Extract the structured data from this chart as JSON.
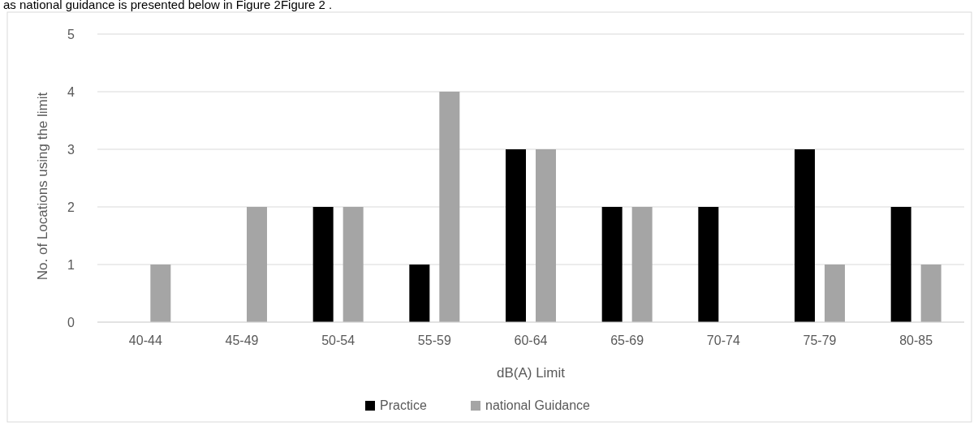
{
  "chart_data": {
    "type": "bar",
    "xlabel": "dB(A) Limit",
    "ylabel": "No. of Locations using the limit",
    "annotations": [
      "as national guidance is presented below in Figure 2Figure 2 ."
    ],
    "categories": [
      "40-44",
      "45-49",
      "50-54",
      "55-59",
      "60-64",
      "65-69",
      "70-74",
      "75-79",
      "80-85"
    ],
    "series": [
      {
        "name": "Practice",
        "color": "#000000",
        "values": [
          0,
          0,
          2,
          1,
          3,
          2,
          2,
          3,
          2
        ]
      },
      {
        "name": "national Guidance",
        "color": "#a5a5a5",
        "values": [
          1,
          2,
          2,
          4,
          3,
          2,
          0,
          1,
          1
        ]
      }
    ],
    "ylim": [
      0,
      5
    ],
    "yticks": [
      0,
      1,
      2,
      3,
      4,
      5
    ],
    "grid": "y",
    "legend": "bottom"
  }
}
